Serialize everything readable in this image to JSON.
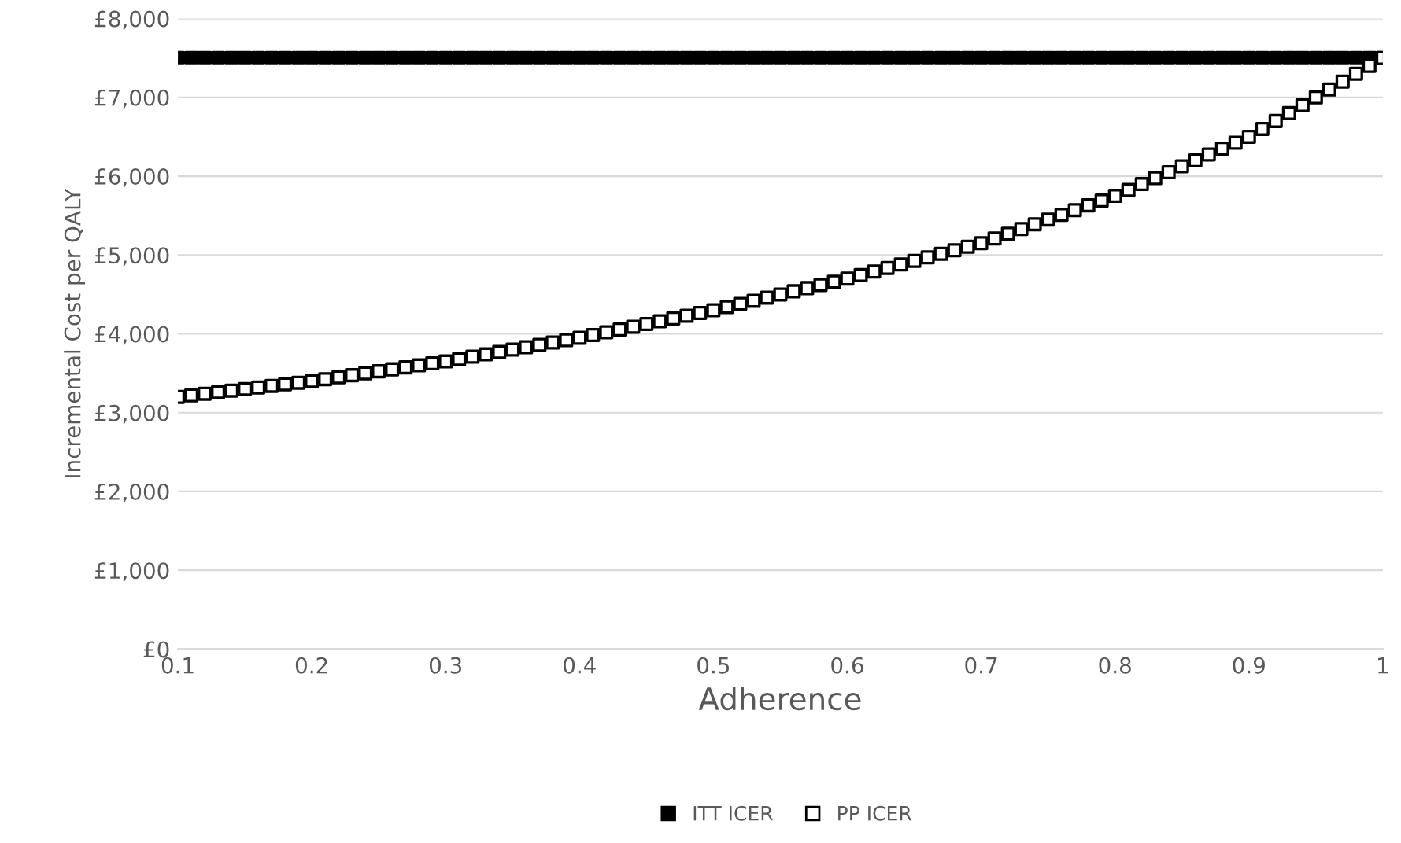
{
  "chart_data": {
    "type": "scatter",
    "xlabel": "Adherence",
    "ylabel": "Incremental Cost per QALY",
    "x": [
      0.1,
      0.11,
      0.12,
      0.13,
      0.14,
      0.15,
      0.16,
      0.17,
      0.18,
      0.19,
      0.2,
      0.21,
      0.22,
      0.23,
      0.24,
      0.25,
      0.26,
      0.27,
      0.28,
      0.29,
      0.3,
      0.31,
      0.32,
      0.33,
      0.34,
      0.35,
      0.36,
      0.37,
      0.38,
      0.39,
      0.4,
      0.41,
      0.42,
      0.43,
      0.44,
      0.45,
      0.46,
      0.47,
      0.48,
      0.49,
      0.5,
      0.51,
      0.52,
      0.53,
      0.54,
      0.55,
      0.56,
      0.57,
      0.58,
      0.59,
      0.6,
      0.61,
      0.62,
      0.63,
      0.64,
      0.65,
      0.66,
      0.67,
      0.68,
      0.69,
      0.7,
      0.71,
      0.72,
      0.73,
      0.74,
      0.75,
      0.76,
      0.77,
      0.78,
      0.79,
      0.8,
      0.81,
      0.82,
      0.83,
      0.84,
      0.85,
      0.86,
      0.87,
      0.88,
      0.89,
      0.9,
      0.91,
      0.92,
      0.93,
      0.94,
      0.95,
      0.96,
      0.97,
      0.98,
      0.99,
      1.0
    ],
    "series": [
      {
        "name": "ITT ICER",
        "color": "#000000",
        "values": [
          7500,
          7500,
          7500,
          7500,
          7500,
          7500,
          7500,
          7500,
          7500,
          7500,
          7500,
          7500,
          7500,
          7500,
          7500,
          7500,
          7500,
          7500,
          7500,
          7500,
          7500,
          7500,
          7500,
          7500,
          7500,
          7500,
          7500,
          7500,
          7500,
          7500,
          7500,
          7500,
          7500,
          7500,
          7500,
          7500,
          7500,
          7500,
          7500,
          7500,
          7500,
          7500,
          7500,
          7500,
          7500,
          7500,
          7500,
          7500,
          7500,
          7500,
          7500,
          7500,
          7500,
          7500,
          7500,
          7500,
          7500,
          7500,
          7500,
          7500,
          7500,
          7500,
          7500,
          7500,
          7500,
          7500,
          7500,
          7500,
          7500,
          7500,
          7500,
          7500,
          7500,
          7500,
          7500,
          7500,
          7500,
          7500,
          7500,
          7500,
          7500,
          7500,
          7500,
          7500,
          7500,
          7500,
          7500,
          7500,
          7500,
          7500,
          7500
        ]
      },
      {
        "name": "PP ICER",
        "color": "#ffffff",
        "values": [
          3200,
          3220,
          3240,
          3260,
          3280,
          3300,
          3320,
          3340,
          3360,
          3380,
          3400,
          3425,
          3450,
          3475,
          3500,
          3525,
          3550,
          3575,
          3600,
          3625,
          3650,
          3680,
          3710,
          3740,
          3770,
          3800,
          3830,
          3860,
          3890,
          3920,
          3950,
          3985,
          4020,
          4055,
          4090,
          4125,
          4160,
          4195,
          4230,
          4265,
          4300,
          4340,
          4380,
          4420,
          4460,
          4500,
          4540,
          4580,
          4620,
          4660,
          4700,
          4745,
          4790,
          4835,
          4880,
          4925,
          4970,
          5015,
          5060,
          5105,
          5150,
          5210,
          5270,
          5330,
          5390,
          5450,
          5510,
          5570,
          5630,
          5690,
          5750,
          5825,
          5900,
          5975,
          6050,
          6125,
          6200,
          6275,
          6350,
          6425,
          6500,
          6600,
          6700,
          6800,
          6900,
          7000,
          7100,
          7200,
          7300,
          7400,
          7500
        ]
      }
    ],
    "xlim": [
      0.1,
      1
    ],
    "xticks": [
      0.1,
      0.2,
      0.3,
      0.4,
      0.5,
      0.6,
      0.7,
      0.8,
      0.9,
      1
    ],
    "ylim": [
      0,
      8000
    ],
    "yticks": [
      {
        "value": 0,
        "label": "£0"
      },
      {
        "value": 1000,
        "label": "£1,000"
      },
      {
        "value": 2000,
        "label": "£2,000"
      },
      {
        "value": 3000,
        "label": "£3,000"
      },
      {
        "value": 4000,
        "label": "£4,000"
      },
      {
        "value": 5000,
        "label": "£5,000"
      },
      {
        "value": 6000,
        "label": "£6,000"
      },
      {
        "value": 7000,
        "label": "£7,000"
      },
      {
        "value": 8000,
        "label": "£8,000"
      }
    ],
    "grid": "y",
    "legend": "bottom",
    "marker": "square"
  }
}
